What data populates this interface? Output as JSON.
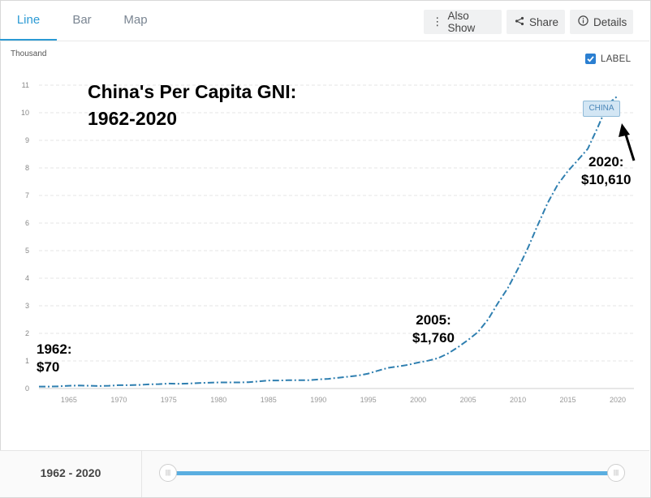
{
  "tabs": [
    {
      "label": "Line"
    },
    {
      "label": "Bar"
    },
    {
      "label": "Map"
    }
  ],
  "toolbar": {
    "also_show": "Also Show",
    "share": "Share",
    "details": "Details"
  },
  "label_toggle": {
    "text": "LABEL",
    "checked": true
  },
  "accent_color": "#2b9ad4",
  "line_color": "#2f7fb0",
  "range": {
    "label": "1962 - 2020",
    "start": 1962,
    "end": 2020
  },
  "chart_data": {
    "type": "line",
    "title": "China's Per Capita GNI:\n1962-2020",
    "unit_label": "Thousand",
    "xlabel": "",
    "ylabel": "",
    "xlim": [
      1962,
      2020
    ],
    "ylim": [
      0,
      11
    ],
    "x_ticks": [
      1965,
      1970,
      1975,
      1980,
      1985,
      1990,
      1995,
      2000,
      2005,
      2010,
      2015,
      2020
    ],
    "y_ticks": [
      0,
      1,
      2,
      3,
      4,
      5,
      6,
      7,
      8,
      9,
      10,
      11
    ],
    "grid": true,
    "series": [
      {
        "name": "CHINA",
        "x": [
          1962,
          1963,
          1964,
          1965,
          1966,
          1967,
          1968,
          1969,
          1970,
          1971,
          1972,
          1973,
          1974,
          1975,
          1976,
          1977,
          1978,
          1979,
          1980,
          1981,
          1982,
          1983,
          1984,
          1985,
          1986,
          1987,
          1988,
          1989,
          1990,
          1991,
          1992,
          1993,
          1994,
          1995,
          1996,
          1997,
          1998,
          1999,
          2000,
          2001,
          2002,
          2003,
          2004,
          2005,
          2006,
          2007,
          2008,
          2009,
          2010,
          2011,
          2012,
          2013,
          2014,
          2015,
          2016,
          2017,
          2018,
          2019,
          2020
        ],
        "y": [
          0.07,
          0.07,
          0.08,
          0.1,
          0.11,
          0.1,
          0.09,
          0.1,
          0.12,
          0.12,
          0.13,
          0.15,
          0.16,
          0.18,
          0.17,
          0.18,
          0.2,
          0.21,
          0.22,
          0.22,
          0.22,
          0.23,
          0.26,
          0.29,
          0.29,
          0.3,
          0.3,
          0.3,
          0.33,
          0.35,
          0.39,
          0.43,
          0.47,
          0.54,
          0.65,
          0.75,
          0.8,
          0.86,
          0.94,
          1.01,
          1.1,
          1.27,
          1.5,
          1.76,
          2.05,
          2.5,
          3.1,
          3.65,
          4.34,
          5.1,
          5.94,
          6.74,
          7.4,
          7.88,
          8.28,
          8.69,
          9.47,
          10.31,
          10.61
        ]
      }
    ],
    "annotations": [
      {
        "id": "a1962",
        "text": "1962:\n$70"
      },
      {
        "id": "a2005",
        "text": "2005:\n$1,760"
      },
      {
        "id": "a2020",
        "text": "2020:\n$10,610"
      }
    ],
    "series_label": "CHINA"
  }
}
